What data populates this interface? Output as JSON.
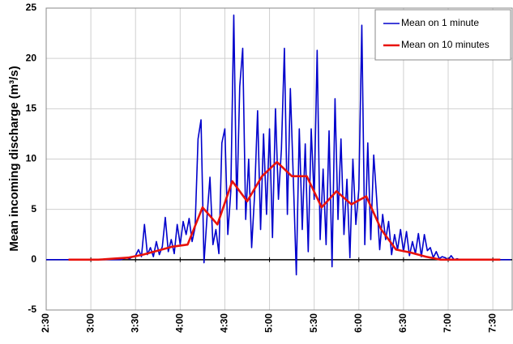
{
  "chart_data": {
    "type": "line",
    "y_label": "Mean incoming discharge (m³/s)",
    "xlim": [
      150,
      463
    ],
    "ylim": [
      -5,
      25
    ],
    "xticks": [
      {
        "value": 150,
        "label": "2:30"
      },
      {
        "value": 180,
        "label": "3:00"
      },
      {
        "value": 210,
        "label": "3:30"
      },
      {
        "value": 240,
        "label": "4:00"
      },
      {
        "value": 270,
        "label": "4:30"
      },
      {
        "value": 300,
        "label": "5:00"
      },
      {
        "value": 330,
        "label": "5:30"
      },
      {
        "value": 360,
        "label": "6:00"
      },
      {
        "value": 390,
        "label": "6:30"
      },
      {
        "value": 420,
        "label": "7:00"
      },
      {
        "value": 450,
        "label": "7:30"
      }
    ],
    "yticks": [
      -5,
      0,
      5,
      10,
      15,
      20,
      25
    ],
    "grid": true,
    "legend": "top-right",
    "series": [
      {
        "name": "Mean on 1 minute",
        "color": "#0000cc",
        "x": [
          150,
          200,
          202,
          204,
          206,
          208,
          210,
          212,
          214,
          216,
          218,
          220,
          222,
          224,
          226,
          228,
          230,
          232,
          234,
          236,
          238,
          240,
          242,
          244,
          246,
          248,
          250,
          252,
          254,
          256,
          258,
          260,
          262,
          264,
          266,
          268,
          270,
          272,
          274,
          276,
          278,
          280,
          282,
          284,
          286,
          288,
          290,
          292,
          294,
          296,
          298,
          300,
          302,
          304,
          306,
          308,
          310,
          312,
          314,
          316,
          318,
          320,
          322,
          324,
          326,
          328,
          330,
          332,
          334,
          336,
          338,
          340,
          342,
          344,
          346,
          348,
          350,
          352,
          354,
          356,
          358,
          360,
          362,
          364,
          366,
          368,
          370,
          372,
          374,
          376,
          378,
          380,
          382,
          384,
          386,
          388,
          390,
          392,
          394,
          396,
          398,
          400,
          402,
          404,
          406,
          408,
          410,
          412,
          414,
          416,
          418,
          420,
          422,
          424,
          426,
          428,
          430,
          462
        ],
        "values": [
          0,
          0,
          0.1,
          0.2,
          0.1,
          0.3,
          0.4,
          1.0,
          0.3,
          3.5,
          0.5,
          1.2,
          0.3,
          1.8,
          0.5,
          1.3,
          4.2,
          0.8,
          2.0,
          0.6,
          3.5,
          1.5,
          3.8,
          2.5,
          4.1,
          1.8,
          3.2,
          12.0,
          13.9,
          -0.3,
          4.2,
          8.2,
          1.5,
          3.0,
          0.6,
          11.6,
          13.0,
          2.5,
          6.8,
          24.3,
          5.0,
          17.2,
          21.0,
          4.0,
          10.0,
          1.2,
          6.5,
          14.8,
          3.0,
          12.5,
          4.5,
          13.0,
          2.2,
          15.0,
          6.0,
          11.0,
          21.0,
          4.5,
          17.0,
          8.0,
          -1.5,
          13.0,
          3.0,
          11.5,
          0.8,
          13.0,
          6.0,
          20.8,
          2.0,
          9.0,
          1.5,
          12.8,
          -0.7,
          16.0,
          4.0,
          12.0,
          2.5,
          8.0,
          0.2,
          10.0,
          3.5,
          7.0,
          23.3,
          1.5,
          11.6,
          2.0,
          10.4,
          6.0,
          1.0,
          4.5,
          2.0,
          3.8,
          0.5,
          2.5,
          1.0,
          3.0,
          0.8,
          2.8,
          0.4,
          1.8,
          0.6,
          2.6,
          0.3,
          2.5,
          0.9,
          1.2,
          0.2,
          0.8,
          0.1,
          0.3,
          0.2,
          0.0,
          0.4,
          0.0,
          0.1,
          0.0,
          0.0,
          0
        ]
      },
      {
        "name": "Mean on 10 minutes",
        "color": "#e8120c",
        "x": [
          165,
          175,
          185,
          195,
          205,
          215,
          225,
          235,
          245,
          255,
          265,
          275,
          285,
          295,
          305,
          315,
          325,
          335,
          345,
          355,
          365,
          375,
          385,
          395,
          405,
          415,
          425,
          435,
          445,
          455
        ],
        "values": [
          0,
          0,
          0,
          0.1,
          0.2,
          0.5,
          0.9,
          1.3,
          1.5,
          5.2,
          3.5,
          7.8,
          5.8,
          8.3,
          9.7,
          8.3,
          8.3,
          5.2,
          6.8,
          5.5,
          6.3,
          3.0,
          1.0,
          0.7,
          0.3,
          0.0,
          0,
          0,
          0,
          0
        ]
      }
    ]
  }
}
